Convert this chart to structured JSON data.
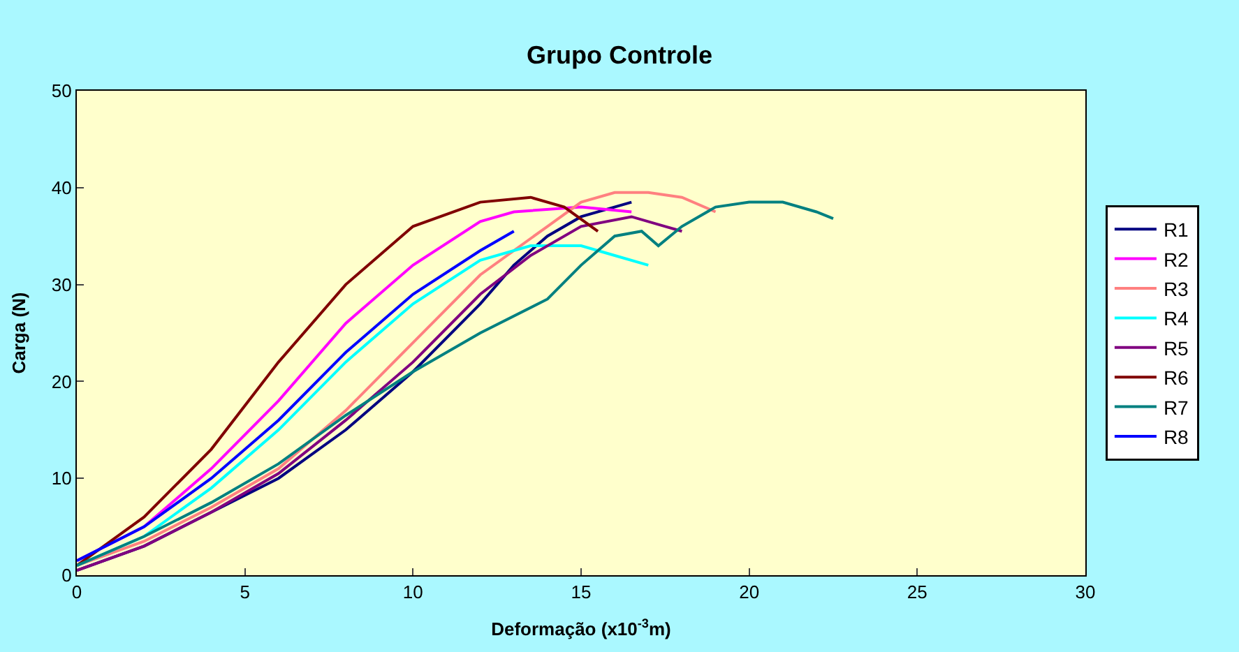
{
  "chart_data": {
    "type": "line",
    "title": "Grupo Controle",
    "xlabel": "Deformação (x10$^{-3}$m)",
    "ylabel": "Carga (N)",
    "xlim": [
      0,
      30
    ],
    "xticks": [
      0,
      5,
      10,
      15,
      20,
      25,
      30
    ],
    "ylim": [
      0,
      50
    ],
    "yticks": [
      0,
      10,
      20,
      30,
      40,
      50
    ],
    "grid": false,
    "legend": "right",
    "marker": "none",
    "line_style": "solid",
    "series": [
      {
        "name": "R1",
        "color": "#000080",
        "x": [
          0,
          2,
          4,
          6,
          8,
          10,
          12,
          13,
          14,
          15,
          16.5
        ],
        "values": [
          0.5,
          3,
          6.5,
          10,
          15,
          21,
          28,
          32,
          35,
          37,
          38.5
        ]
      },
      {
        "name": "R2",
        "color": "#ff00ff",
        "x": [
          0,
          2,
          4,
          6,
          8,
          10,
          12,
          13,
          15,
          16.5
        ],
        "values": [
          1.5,
          5,
          11,
          18,
          26,
          32,
          36.5,
          37.5,
          38,
          37.5
        ]
      },
      {
        "name": "R3",
        "color": "#ff8080",
        "x": [
          0,
          2,
          4,
          6,
          8,
          10,
          12,
          14,
          15,
          16,
          17,
          18,
          19
        ],
        "values": [
          1,
          3.5,
          7,
          11,
          17,
          24,
          31,
          36,
          38.5,
          39.5,
          39.5,
          39,
          37.5
        ]
      },
      {
        "name": "R4",
        "color": "#00ffff",
        "x": [
          0,
          2,
          4,
          6,
          8,
          10,
          12,
          13.5,
          15,
          16,
          17
        ],
        "values": [
          1,
          4,
          9,
          15,
          22,
          28,
          32.5,
          34,
          34,
          33,
          32
        ]
      },
      {
        "name": "R5",
        "color": "#800080",
        "x": [
          0,
          2,
          4,
          6,
          8,
          10,
          12,
          13.5,
          15,
          16.5,
          17.5,
          18
        ],
        "values": [
          0.5,
          3,
          6.5,
          10.5,
          16,
          22,
          29,
          33,
          36,
          37,
          36,
          35.5
        ]
      },
      {
        "name": "R6",
        "color": "#800000",
        "x": [
          0,
          2,
          4,
          6,
          8,
          10,
          12,
          13.5,
          14.5,
          15.5
        ],
        "values": [
          1,
          6,
          13,
          22,
          30,
          36,
          38.5,
          39,
          38,
          35.5
        ]
      },
      {
        "name": "R7",
        "color": "#008080",
        "x": [
          0,
          2,
          4,
          6,
          8,
          10,
          12,
          14,
          15,
          16,
          16.8,
          17.3,
          18,
          19,
          20,
          21,
          22,
          22.5
        ],
        "values": [
          1,
          4,
          7.5,
          11.5,
          16.5,
          21,
          25,
          28.5,
          32,
          35,
          35.5,
          34,
          36,
          38,
          38.5,
          38.5,
          37.5,
          36.8
        ]
      },
      {
        "name": "R8",
        "color": "#0000ff",
        "x": [
          0,
          2,
          4,
          6,
          8,
          10,
          12,
          13
        ],
        "values": [
          1.5,
          5,
          10,
          16,
          23,
          29,
          33.5,
          35.5
        ]
      }
    ]
  }
}
